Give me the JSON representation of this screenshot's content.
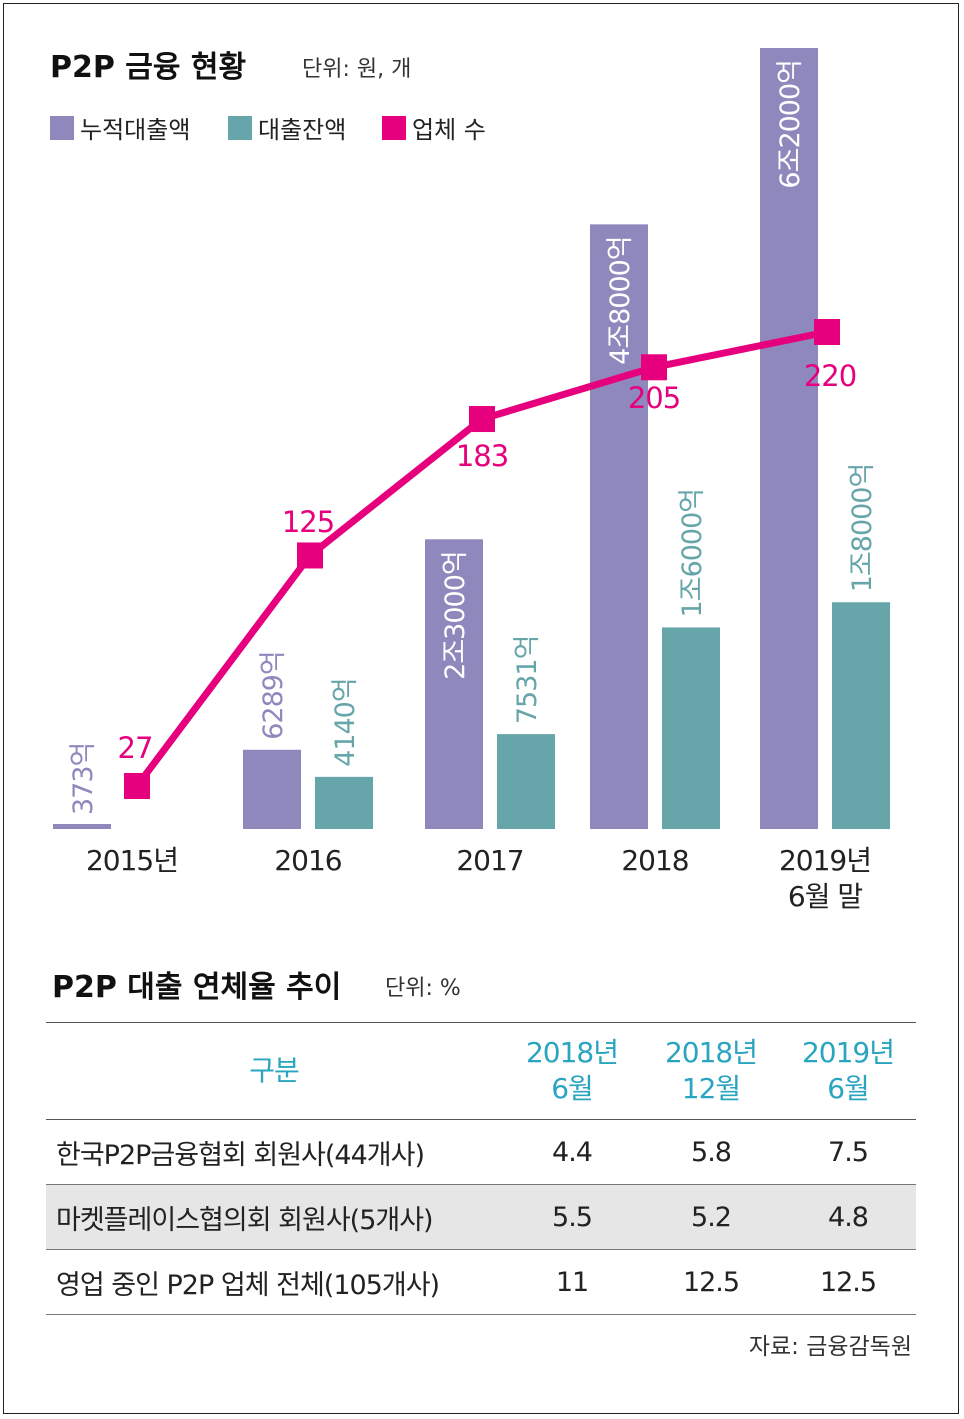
{
  "chart": {
    "title": "P2P 금융 현황",
    "unit": "단위: 원, 개",
    "legend": [
      {
        "name": "누적대출액",
        "color": "#8f88bc"
      },
      {
        "name": "대출잔액",
        "color": "#66a5a9"
      },
      {
        "name": "업체 수",
        "color": "#e6007e"
      }
    ]
  },
  "chart_data": {
    "type": "bar",
    "categories": [
      "2015년",
      "2016",
      "2017",
      "2018",
      "2019년\n6월 말"
    ],
    "series": [
      {
        "name": "누적대출액",
        "values": [
          373,
          6289,
          23000,
          48000,
          62000
        ],
        "labels": [
          "373억",
          "6289억",
          "2조3000억",
          "4조8000억",
          "6조2000억"
        ],
        "color": "#8f88bc"
      },
      {
        "name": "대출잔액",
        "values": [
          null,
          4140,
          7531,
          16000,
          18000
        ],
        "labels": [
          "",
          "4140억",
          "7531억",
          "1조6000억",
          "1조8000억"
        ],
        "color": "#66a5a9"
      },
      {
        "name": "업체 수",
        "type": "line",
        "values": [
          27,
          125,
          183,
          205,
          220
        ],
        "labels": [
          "27",
          "125",
          "183",
          "205",
          "220"
        ],
        "color": "#e6007e"
      }
    ]
  },
  "table": {
    "title": "P2P 대출 연체율 추이",
    "unit": "단위: %",
    "header": [
      "구분",
      "2018년\n6월",
      "2018년\n12월",
      "2019년\n6월"
    ],
    "rows": [
      {
        "name": "한국P2P금융협회 회원사(44개사)",
        "values": [
          "4.4",
          "5.8",
          "7.5"
        ]
      },
      {
        "name": "마켓플레이스협의회 회원사(5개사)",
        "values": [
          "5.5",
          "5.2",
          "4.8"
        ]
      },
      {
        "name": "영업 중인 P2P 업체 전체(105개사)",
        "values": [
          "11",
          "12.5",
          "12.5"
        ]
      }
    ]
  },
  "source": "자료: 금융감독원"
}
